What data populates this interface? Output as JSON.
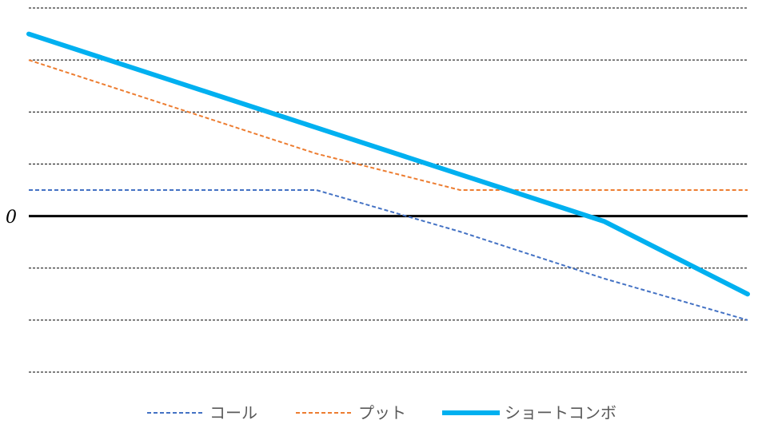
{
  "chart_data": {
    "type": "line",
    "title": "",
    "xlabel": "",
    "ylabel": "",
    "x": [
      0,
      20,
      40,
      60,
      80,
      100
    ],
    "ylim": [
      -3,
      4
    ],
    "y_tick_labels": [
      {
        "value": 0,
        "label": "0"
      }
    ],
    "grid": true,
    "legend_position": "bottom",
    "series": [
      {
        "name": "コール",
        "color": "#4472C4",
        "style": "dashed",
        "values": [
          0.5,
          0.5,
          0.5,
          -0.3,
          -1.2,
          -2.0
        ]
      },
      {
        "name": "プット",
        "color": "#ED7D31",
        "style": "dashed",
        "values": [
          3.0,
          2.1,
          1.2,
          0.5,
          0.5,
          0.5
        ]
      },
      {
        "name": "ショートコンボ",
        "color": "#00B0F0",
        "style": "solid",
        "values": [
          3.5,
          2.6,
          1.7,
          0.8,
          -0.1,
          -1.5
        ]
      }
    ]
  }
}
